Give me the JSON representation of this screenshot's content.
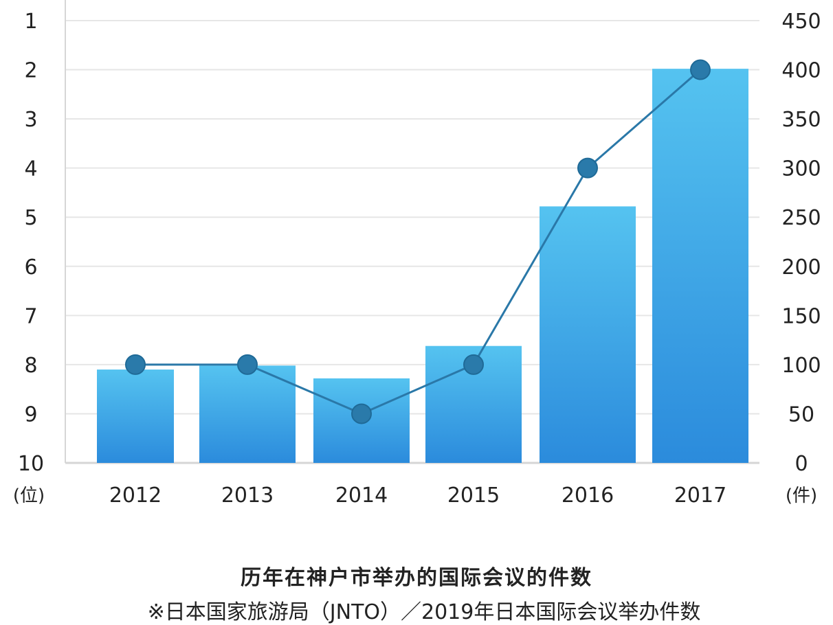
{
  "chart_data": {
    "type": "bar+line",
    "categories": [
      "2012",
      "2013",
      "2014",
      "2015",
      "2016",
      "2017"
    ],
    "bar_series": {
      "axis": "right",
      "values": [
        95,
        99,
        86,
        119,
        261,
        401
      ]
    },
    "line_series": {
      "axis": "left",
      "values": [
        8,
        8,
        9,
        8,
        4,
        2
      ]
    },
    "left_axis": {
      "unit": "(位)",
      "ticks": [
        "1",
        "2",
        "3",
        "4",
        "5",
        "6",
        "7",
        "8",
        "9",
        "10"
      ],
      "range": [
        1,
        10
      ],
      "inverted": true
    },
    "right_axis": {
      "unit": "(件)",
      "ticks": [
        "0",
        "50",
        "100",
        "150",
        "200",
        "250",
        "300",
        "350",
        "400",
        "450"
      ],
      "range": [
        0,
        450
      ]
    },
    "grid": true,
    "colors": {
      "bar_top": "#55c3f0",
      "bar_bottom": "#2b8bdc",
      "line": "#2a78a8",
      "marker": "#2a7aaa",
      "grid": "#e6e6e6",
      "axis": "#d6d6d6"
    }
  },
  "caption": {
    "title": "历年在神户市举办的国际会议的件数",
    "note": "※日本国家旅游局（JNTO）／2019年日本国际会议举办件数"
  }
}
